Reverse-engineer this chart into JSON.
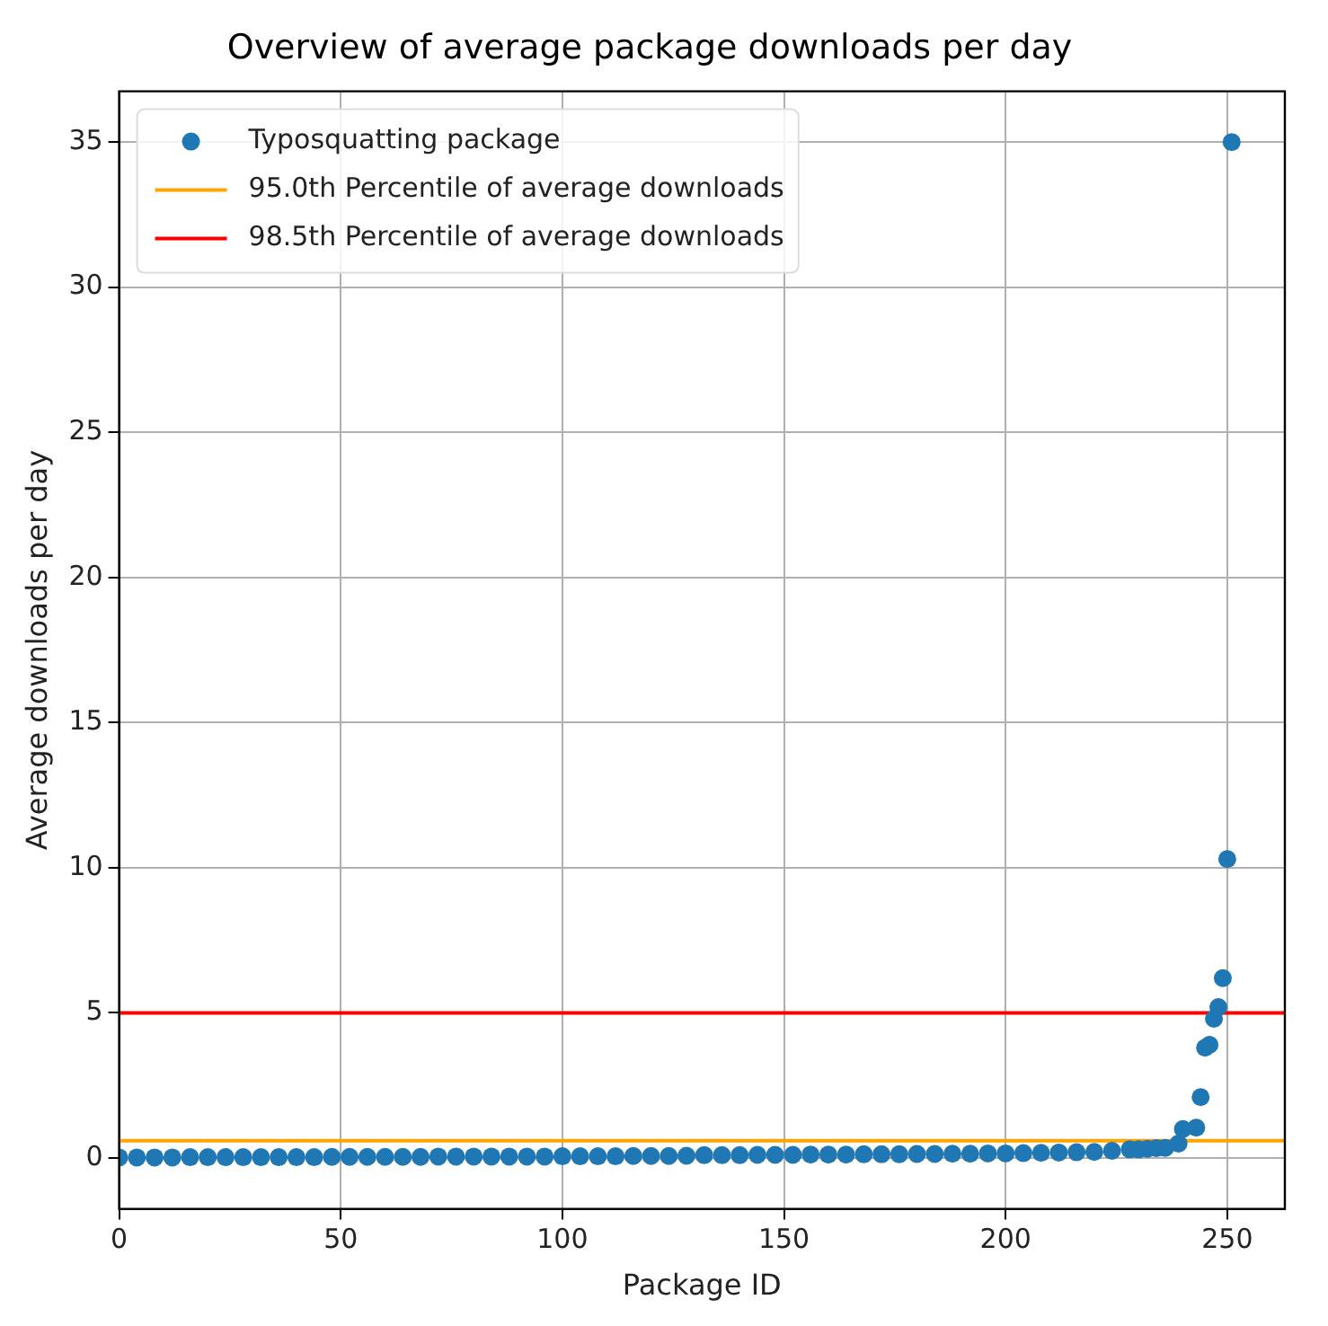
{
  "chart_data": {
    "type": "scatter",
    "title": "Overview of average package downloads per day",
    "xlabel": "Package ID",
    "ylabel": "Average downloads per day",
    "x": [
      0,
      4,
      8,
      12,
      16,
      20,
      24,
      28,
      32,
      36,
      40,
      44,
      48,
      52,
      56,
      60,
      64,
      68,
      72,
      76,
      80,
      84,
      88,
      92,
      96,
      100,
      104,
      108,
      112,
      116,
      120,
      124,
      128,
      132,
      136,
      140,
      144,
      148,
      152,
      156,
      160,
      164,
      168,
      172,
      176,
      180,
      184,
      188,
      192,
      196,
      200,
      204,
      208,
      212,
      216,
      220,
      224,
      228,
      230,
      232,
      234,
      236,
      239,
      240,
      243,
      244,
      245,
      246,
      247,
      248,
      249,
      250,
      251
    ],
    "series": [
      {
        "name": "Typosquatting package",
        "color": "#1f77b4",
        "values": [
          0.02,
          0.02,
          0.02,
          0.02,
          0.03,
          0.03,
          0.03,
          0.03,
          0.03,
          0.03,
          0.03,
          0.03,
          0.04,
          0.04,
          0.04,
          0.04,
          0.04,
          0.04,
          0.05,
          0.05,
          0.05,
          0.05,
          0.05,
          0.05,
          0.05,
          0.06,
          0.06,
          0.06,
          0.06,
          0.07,
          0.07,
          0.07,
          0.08,
          0.1,
          0.1,
          0.1,
          0.11,
          0.11,
          0.11,
          0.12,
          0.12,
          0.12,
          0.13,
          0.13,
          0.13,
          0.14,
          0.14,
          0.15,
          0.15,
          0.16,
          0.16,
          0.17,
          0.18,
          0.19,
          0.2,
          0.21,
          0.25,
          0.3,
          0.3,
          0.32,
          0.34,
          0.35,
          0.5,
          1.0,
          1.05,
          2.1,
          3.8,
          3.9,
          4.8,
          5.2,
          6.2,
          10.3,
          35
        ]
      }
    ],
    "ref_lines": [
      {
        "axis": "y",
        "value": 0.6,
        "label": "95.0th Percentile of average downloads",
        "color": "#ffa500"
      },
      {
        "axis": "y",
        "value": 5,
        "label": "98.5th Percentile of average downloads",
        "color": "#ff0000"
      }
    ],
    "xlim": [
      0,
      263
    ],
    "ylim": [
      -1.75,
      36.75
    ],
    "xticks": [
      0,
      50,
      100,
      150,
      200,
      250
    ],
    "yticks": [
      0,
      5,
      10,
      15,
      20,
      25,
      30,
      35
    ],
    "grid": true,
    "legend": "top left",
    "marker": "circle"
  }
}
